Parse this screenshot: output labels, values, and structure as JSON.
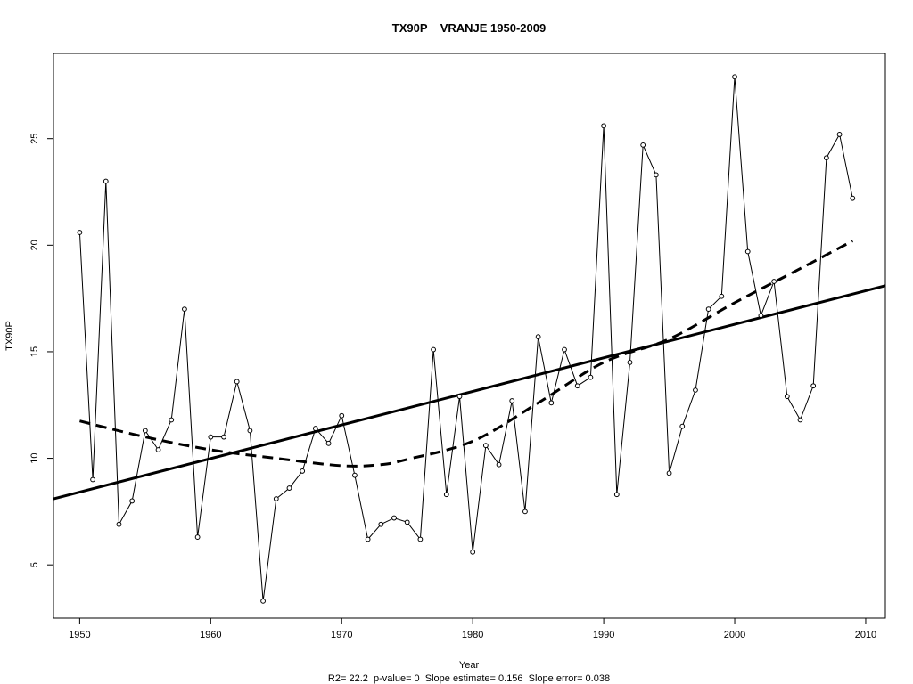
{
  "chart_data": {
    "type": "line",
    "title": "TX90P    VRANJE 1950-2009",
    "xlabel": "Year",
    "ylabel": "TX90P",
    "xlim": [
      1948,
      2011.5
    ],
    "ylim": [
      2.5,
      29
    ],
    "x_ticks": [
      1950,
      1960,
      1970,
      1980,
      1990,
      2000,
      2010
    ],
    "y_ticks": [
      5,
      10,
      15,
      20,
      25
    ],
    "grid": false,
    "footnote": "R2= 22.2  p-value= 0  Slope estimate= 0.156  Slope error= 0.038",
    "series": [
      {
        "style": "line-with-open-circles",
        "x": [
          1950,
          1951,
          1952,
          1953,
          1954,
          1955,
          1956,
          1957,
          1958,
          1959,
          1960,
          1961,
          1962,
          1963,
          1964,
          1965,
          1966,
          1967,
          1968,
          1969,
          1970,
          1971,
          1972,
          1973,
          1974,
          1975,
          1976,
          1977,
          1978,
          1979,
          1980,
          1981,
          1982,
          1983,
          1984,
          1985,
          1986,
          1987,
          1988,
          1989,
          1990,
          1991,
          1992,
          1993,
          1994,
          1995,
          1996,
          1997,
          1998,
          1999,
          2000,
          2001,
          2002,
          2003,
          2004,
          2005,
          2006,
          2007,
          2008,
          2009
        ],
        "values": [
          20.6,
          9.0,
          23.0,
          6.9,
          8.0,
          11.3,
          10.4,
          11.8,
          17.0,
          6.3,
          11.0,
          11.0,
          13.6,
          11.3,
          3.3,
          8.1,
          8.6,
          9.4,
          11.4,
          10.7,
          12.0,
          9.2,
          6.2,
          6.9,
          7.2,
          7.0,
          6.2,
          15.1,
          8.3,
          12.9,
          5.6,
          10.6,
          9.7,
          12.7,
          7.5,
          15.7,
          12.6,
          15.1,
          13.4,
          13.8,
          25.6,
          8.3,
          14.5,
          24.7,
          23.3,
          9.3,
          11.5,
          13.2,
          17.0,
          17.6,
          27.9,
          19.7,
          16.7,
          18.3,
          12.9,
          11.8,
          13.4,
          24.1,
          25.2,
          22.2
        ]
      },
      {
        "style": "solid-trend",
        "x": [
          1948,
          2011.5
        ],
        "values": [
          8.1,
          18.1
        ]
      },
      {
        "style": "dashed-smooth",
        "x": [
          1950,
          1955,
          1960,
          1965,
          1970,
          1973,
          1975,
          1980,
          1985,
          1990,
          1995,
          2000,
          2005,
          2009
        ],
        "values": [
          11.75,
          11.0,
          10.4,
          10.0,
          9.65,
          9.7,
          9.95,
          10.8,
          12.6,
          14.5,
          15.6,
          17.3,
          18.9,
          20.2
        ]
      }
    ]
  }
}
